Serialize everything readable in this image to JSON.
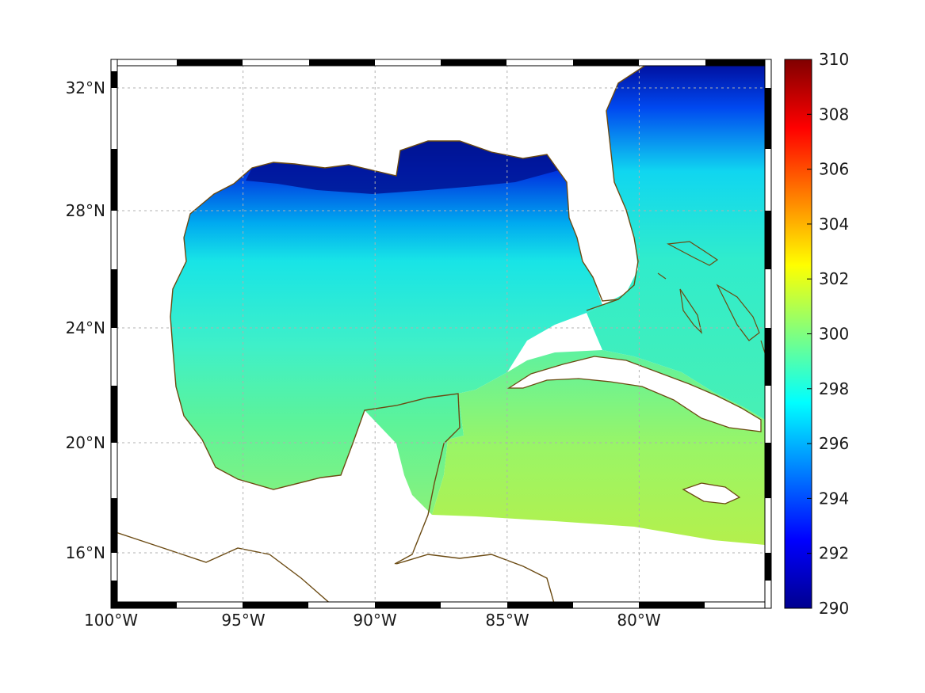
{
  "figure": {
    "x_tick_labels": [
      "100°W",
      "95°W",
      "90°W",
      "85°W",
      "80°W"
    ],
    "y_tick_labels": [
      "32°N",
      "28°N",
      "24°N",
      "20°N",
      "16°N"
    ],
    "colorbar_tick_labels": [
      "310",
      "308",
      "306",
      "304",
      "302",
      "300",
      "298",
      "296",
      "294",
      "292",
      "290"
    ],
    "colorbar_range": [
      290,
      310
    ],
    "colormap": "jet",
    "extent": {
      "lon_min": -100,
      "lon_max": -75,
      "lat_min": 14.3,
      "lat_max": 33
    },
    "grid": true,
    "coastline_color": "#6b4a12",
    "land_color": "#ffffff"
  },
  "chart_data": {
    "type": "heatmap",
    "variable_range": [
      290,
      310
    ],
    "x_ticks_lon": [
      -100,
      -95,
      -90,
      -85,
      -80
    ],
    "y_ticks_lat": [
      32,
      28,
      24,
      20,
      16
    ],
    "colorbar_ticks": [
      310,
      308,
      306,
      304,
      302,
      300,
      298,
      296,
      294,
      292,
      290
    ],
    "colorbar_placement": "right",
    "approx_field": [
      {
        "region": "northern Gulf coast",
        "value": 291
      },
      {
        "region": "Atlantic off Georgia/Carolinas",
        "value": 291.5
      },
      {
        "region": "central Gulf",
        "value": 297.5
      },
      {
        "region": "western Gulf",
        "value": 297
      },
      {
        "region": "Straits of Florida",
        "value": 298
      },
      {
        "region": "Yucatan Channel",
        "value": 299.5
      },
      {
        "region": "Caribbean south of Cuba",
        "value": 300.5
      }
    ]
  }
}
